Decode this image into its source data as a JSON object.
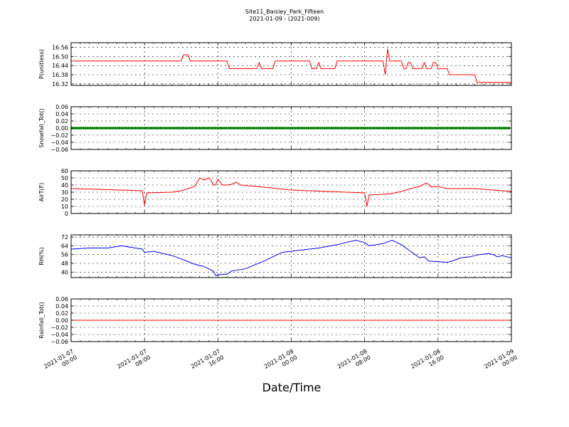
{
  "title": "Site11_Baisley_Park_Fifteen",
  "subtitle": "2021-01-09 - (2021-009)",
  "chart_data": {
    "type": "line",
    "xlabel": "Date/Time",
    "x_ticks": [
      "2021-01-07 00:00",
      "2021-01-07 08:00",
      "2021-01-07 16:00",
      "2021-01-08 00:00",
      "2021-01-08 08:00",
      "2021-01-08 16:00",
      "2021-01-09 00:00"
    ],
    "x_range": [
      "2021-01-07 00:00",
      "2021-01-09 00:00"
    ],
    "grid": true,
    "panels": [
      {
        "ylabel": "P(unitless)",
        "ylim": [
          16.31,
          16.59
        ],
        "yticks": [
          "16.56",
          "16.50",
          "16.44",
          "16.38",
          "16.32"
        ],
        "color": "#ff0000",
        "marker": "line",
        "series": [
          [
            "2021-01-07 00:00",
            16.47
          ],
          [
            "2021-01-07 12:00",
            16.47
          ],
          [
            "2021-01-07 12:15",
            16.51
          ],
          [
            "2021-01-07 12:45",
            16.51
          ],
          [
            "2021-01-07 13:00",
            16.47
          ],
          [
            "2021-01-07 17:00",
            16.47
          ],
          [
            "2021-01-07 17:15",
            16.42
          ],
          [
            "2021-01-07 20:15",
            16.42
          ],
          [
            "2021-01-07 20:30",
            16.46
          ],
          [
            "2021-01-07 20:45",
            16.42
          ],
          [
            "2021-01-07 22:00",
            16.42
          ],
          [
            "2021-01-07 22:15",
            16.47
          ],
          [
            "2021-01-08 02:00",
            16.47
          ],
          [
            "2021-01-08 02:15",
            16.42
          ],
          [
            "2021-01-08 02:45",
            16.42
          ],
          [
            "2021-01-08 03:00",
            16.46
          ],
          [
            "2021-01-08 03:15",
            16.42
          ],
          [
            "2021-01-08 04:45",
            16.42
          ],
          [
            "2021-01-08 05:00",
            16.47
          ],
          [
            "2021-01-08 10:00",
            16.47
          ],
          [
            "2021-01-08 10:15",
            16.38
          ],
          [
            "2021-01-08 10:30",
            16.55
          ],
          [
            "2021-01-08 10:45",
            16.47
          ],
          [
            "2021-01-08 12:00",
            16.47
          ],
          [
            "2021-01-08 12:15",
            16.42
          ],
          [
            "2021-01-08 12:30",
            16.42
          ],
          [
            "2021-01-08 12:45",
            16.46
          ],
          [
            "2021-01-08 13:00",
            16.46
          ],
          [
            "2021-01-08 13:15",
            16.42
          ],
          [
            "2021-01-08 14:15",
            16.42
          ],
          [
            "2021-01-08 14:30",
            16.46
          ],
          [
            "2021-01-08 14:45",
            16.42
          ],
          [
            "2021-01-08 15:15",
            16.42
          ],
          [
            "2021-01-08 15:30",
            16.46
          ],
          [
            "2021-01-08 15:45",
            16.46
          ],
          [
            "2021-01-08 16:00",
            16.42
          ],
          [
            "2021-01-08 17:00",
            16.42
          ],
          [
            "2021-01-08 17:15",
            16.38
          ],
          [
            "2021-01-08 20:00",
            16.38
          ],
          [
            "2021-01-08 20:15",
            16.33
          ],
          [
            "2021-01-09 00:00",
            16.33
          ]
        ]
      },
      {
        "ylabel": "Snowfall_Tot()",
        "ylim": [
          -0.06,
          0.06
        ],
        "yticks": [
          "0.06",
          "0.04",
          "0.02",
          "0.00",
          "−0.02",
          "−0.04",
          "−0.06"
        ],
        "color": "#008000",
        "marker": "dots",
        "series": [
          [
            "2021-01-07 00:00",
            0.0
          ],
          [
            "2021-01-09 00:00",
            0.0
          ]
        ]
      },
      {
        "ylabel": "AirT(F)",
        "ylim": [
          0,
          60
        ],
        "yticks": [
          "60",
          "50",
          "40",
          "30",
          "20",
          "10",
          "0"
        ],
        "color": "#ff0000",
        "marker": "line",
        "series": [
          [
            "2021-01-07 00:00",
            35
          ],
          [
            "2021-01-07 03:00",
            34
          ],
          [
            "2021-01-07 07:45",
            32
          ],
          [
            "2021-01-07 08:00",
            12
          ],
          [
            "2021-01-07 08:15",
            29
          ],
          [
            "2021-01-07 11:00",
            30
          ],
          [
            "2021-01-07 12:00",
            32
          ],
          [
            "2021-01-07 13:30",
            38
          ],
          [
            "2021-01-07 14:00",
            50
          ],
          [
            "2021-01-07 14:30",
            47
          ],
          [
            "2021-01-07 15:00",
            50
          ],
          [
            "2021-01-07 15:15",
            47
          ],
          [
            "2021-01-07 15:30",
            40
          ],
          [
            "2021-01-07 15:45",
            40
          ],
          [
            "2021-01-07 16:00",
            48
          ],
          [
            "2021-01-07 16:30",
            40
          ],
          [
            "2021-01-07 17:00",
            40
          ],
          [
            "2021-01-07 17:30",
            41
          ],
          [
            "2021-01-07 18:00",
            44
          ],
          [
            "2021-01-07 18:30",
            40
          ],
          [
            "2021-01-07 21:00",
            37
          ],
          [
            "2021-01-08 00:00",
            33
          ],
          [
            "2021-01-08 08:00",
            29
          ],
          [
            "2021-01-08 08:15",
            10
          ],
          [
            "2021-01-08 08:30",
            26
          ],
          [
            "2021-01-08 10:00",
            27
          ],
          [
            "2021-01-08 11:00",
            28
          ],
          [
            "2021-01-08 12:00",
            31
          ],
          [
            "2021-01-08 13:00",
            35
          ],
          [
            "2021-01-08 14:00",
            38
          ],
          [
            "2021-01-08 14:45",
            43
          ],
          [
            "2021-01-08 15:15",
            37
          ],
          [
            "2021-01-08 16:00",
            38
          ],
          [
            "2021-01-08 17:00",
            35
          ],
          [
            "2021-01-08 20:00",
            35
          ],
          [
            "2021-01-09 00:00",
            31
          ]
        ]
      },
      {
        "ylabel": "RH(%)",
        "ylim": [
          35,
          74
        ],
        "yticks": [
          "72",
          "64",
          "56",
          "48",
          "40"
        ],
        "color": "#0000ff",
        "marker": "line",
        "series": [
          [
            "2021-01-07 00:00",
            61
          ],
          [
            "2021-01-07 02:00",
            62
          ],
          [
            "2021-01-07 04:00",
            62
          ],
          [
            "2021-01-07 05:30",
            64
          ],
          [
            "2021-01-07 07:00",
            62
          ],
          [
            "2021-01-07 07:45",
            61
          ],
          [
            "2021-01-07 08:00",
            58
          ],
          [
            "2021-01-07 09:00",
            59
          ],
          [
            "2021-01-07 11:00",
            55
          ],
          [
            "2021-01-07 12:00",
            52
          ],
          [
            "2021-01-07 13:30",
            47
          ],
          [
            "2021-01-07 14:30",
            45
          ],
          [
            "2021-01-07 15:00",
            43
          ],
          [
            "2021-01-07 15:30",
            41
          ],
          [
            "2021-01-07 15:45",
            37
          ],
          [
            "2021-01-07 16:30",
            38
          ],
          [
            "2021-01-07 17:00",
            38
          ],
          [
            "2021-01-07 17:30",
            41
          ],
          [
            "2021-01-07 19:00",
            43
          ],
          [
            "2021-01-07 21:00",
            50
          ],
          [
            "2021-01-07 23:00",
            58
          ],
          [
            "2021-01-08 01:00",
            60
          ],
          [
            "2021-01-08 03:00",
            62
          ],
          [
            "2021-01-08 05:00",
            65
          ],
          [
            "2021-01-08 07:00",
            69
          ],
          [
            "2021-01-08 08:00",
            67
          ],
          [
            "2021-01-08 08:30",
            64
          ],
          [
            "2021-01-08 10:00",
            66
          ],
          [
            "2021-01-08 11:00",
            69
          ],
          [
            "2021-01-08 12:00",
            65
          ],
          [
            "2021-01-08 13:00",
            59
          ],
          [
            "2021-01-08 14:00",
            53
          ],
          [
            "2021-01-08 14:30",
            54
          ],
          [
            "2021-01-08 15:00",
            50
          ],
          [
            "2021-01-08 17:00",
            49
          ],
          [
            "2021-01-08 17:30",
            50
          ],
          [
            "2021-01-08 18:30",
            53
          ],
          [
            "2021-01-08 19:30",
            54
          ],
          [
            "2021-01-08 20:30",
            56
          ],
          [
            "2021-01-08 21:30",
            57
          ],
          [
            "2021-01-08 22:00",
            56
          ],
          [
            "2021-01-08 22:30",
            54
          ],
          [
            "2021-01-08 23:00",
            55
          ],
          [
            "2021-01-09 00:00",
            53
          ]
        ]
      },
      {
        "ylabel": "Rainfall_Tot()",
        "ylim": [
          -0.06,
          0.06
        ],
        "yticks": [
          "0.06",
          "0.04",
          "0.02",
          "0.00",
          "−0.02",
          "−0.04",
          "−0.06"
        ],
        "color": "#ff0000",
        "marker": "line",
        "series": [
          [
            "2021-01-07 00:00",
            0.0
          ],
          [
            "2021-01-09 00:00",
            0.0
          ]
        ]
      }
    ]
  }
}
